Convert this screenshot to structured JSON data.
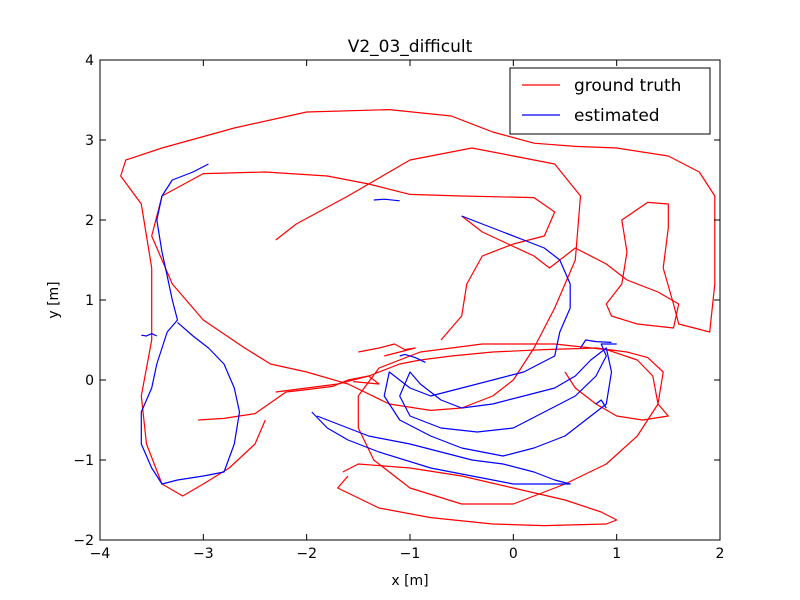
{
  "chart_data": {
    "type": "line",
    "title": "V2_03_difficult",
    "xlabel": "x [m]",
    "ylabel": "y [m]",
    "xlim": [
      -4,
      2
    ],
    "ylim": [
      -2,
      4
    ],
    "xticks": [
      -4,
      -3,
      -2,
      -1,
      0,
      1,
      2
    ],
    "yticks": [
      -2,
      -1,
      0,
      1,
      2,
      3,
      4
    ],
    "xtick_labels": [
      "−4",
      "−3",
      "−2",
      "−1",
      "0",
      "1",
      "2"
    ],
    "ytick_labels": [
      "−2",
      "−1",
      "0",
      "1",
      "2",
      "3",
      "4"
    ],
    "grid": false,
    "legend_position": "top-right",
    "colors": {
      "ground_truth": "#ff0000",
      "estimated": "#0000ff"
    },
    "series": [
      {
        "name": "ground truth",
        "color": "#ff0000",
        "segments": [
          [
            [
              -0.5,
              2.05
            ],
            [
              -0.3,
              1.85
            ],
            [
              -0.05,
              1.7
            ],
            [
              0.2,
              1.55
            ],
            [
              0.35,
              1.4
            ],
            [
              0.6,
              1.65
            ],
            [
              0.9,
              1.45
            ],
            [
              1.1,
              1.25
            ],
            [
              1.4,
              1.1
            ],
            [
              1.6,
              0.95
            ],
            [
              1.55,
              0.65
            ],
            [
              1.2,
              0.7
            ],
            [
              0.95,
              0.8
            ],
            [
              0.9,
              0.95
            ],
            [
              1.05,
              1.2
            ],
            [
              1.1,
              1.6
            ],
            [
              1.05,
              2.0
            ],
            [
              1.3,
              2.22
            ],
            [
              1.5,
              2.2
            ],
            [
              1.5,
              1.9
            ],
            [
              1.45,
              1.4
            ],
            [
              1.55,
              0.95
            ],
            [
              1.6,
              0.7
            ],
            [
              1.9,
              0.6
            ],
            [
              1.95,
              1.2
            ],
            [
              1.95,
              2.3
            ],
            [
              1.8,
              2.6
            ],
            [
              1.5,
              2.8
            ],
            [
              1.0,
              2.9
            ],
            [
              0.6,
              2.92
            ],
            [
              0.2,
              2.96
            ],
            [
              -0.2,
              3.1
            ],
            [
              -0.6,
              3.3
            ],
            [
              -1.2,
              3.38
            ],
            [
              -2.0,
              3.35
            ],
            [
              -2.7,
              3.15
            ],
            [
              -3.4,
              2.9
            ],
            [
              -3.75,
              2.75
            ],
            [
              -3.8,
              2.55
            ],
            [
              -3.6,
              2.2
            ],
            [
              -3.5,
              1.4
            ],
            [
              -3.5,
              0.5
            ],
            [
              -3.6,
              -0.2
            ],
            [
              -3.55,
              -0.8
            ],
            [
              -3.4,
              -1.3
            ],
            [
              -3.2,
              -1.45
            ],
            [
              -3.0,
              -1.3
            ],
            [
              -2.75,
              -1.1
            ],
            [
              -2.5,
              -0.8
            ],
            [
              -2.4,
              -0.5
            ]
          ],
          [
            [
              -2.3,
              -0.15
            ],
            [
              -2.0,
              -0.1
            ],
            [
              -1.7,
              -0.05
            ],
            [
              -1.4,
              0.05
            ],
            [
              -1.1,
              0.2
            ],
            [
              -0.9,
              0.25
            ],
            [
              -0.6,
              0.3
            ],
            [
              -0.2,
              0.35
            ],
            [
              0.3,
              0.38
            ],
            [
              0.8,
              0.4
            ],
            [
              1.1,
              0.35
            ],
            [
              1.3,
              0.28
            ],
            [
              1.45,
              0.1
            ],
            [
              1.4,
              -0.3
            ],
            [
              1.2,
              -0.7
            ],
            [
              0.9,
              -1.05
            ],
            [
              0.5,
              -1.3
            ],
            [
              0.0,
              -1.55
            ],
            [
              -0.5,
              -1.55
            ],
            [
              -1.0,
              -1.35
            ],
            [
              -1.35,
              -1.0
            ],
            [
              -1.5,
              -0.6
            ],
            [
              -1.5,
              -0.2
            ],
            [
              -1.3,
              0.15
            ],
            [
              -0.9,
              0.35
            ],
            [
              -0.3,
              0.45
            ],
            [
              0.4,
              0.45
            ],
            [
              0.9,
              0.38
            ],
            [
              1.2,
              0.25
            ],
            [
              1.35,
              0.05
            ],
            [
              1.4,
              -0.3
            ],
            [
              1.5,
              -0.45
            ],
            [
              1.25,
              -0.5
            ],
            [
              1.0,
              -0.45
            ],
            [
              0.8,
              -0.3
            ],
            [
              0.6,
              -0.1
            ],
            [
              0.5,
              0.1
            ]
          ],
          [
            [
              -2.3,
              1.75
            ],
            [
              -2.1,
              1.95
            ],
            [
              -1.6,
              2.3
            ],
            [
              -1.0,
              2.75
            ],
            [
              -0.4,
              2.9
            ],
            [
              0.0,
              2.8
            ],
            [
              0.4,
              2.7
            ],
            [
              0.65,
              2.3
            ],
            [
              0.6,
              1.5
            ],
            [
              0.4,
              0.9
            ],
            [
              0.2,
              0.4
            ],
            [
              0.0,
              0.0
            ],
            [
              -0.2,
              -0.2
            ],
            [
              -0.5,
              -0.35
            ],
            [
              -0.8,
              -0.38
            ],
            [
              -1.2,
              -0.3
            ],
            [
              -1.6,
              -0.05
            ],
            [
              -2.0,
              0.1
            ],
            [
              -2.35,
              0.2
            ],
            [
              -2.6,
              0.4
            ],
            [
              -3.0,
              0.75
            ],
            [
              -3.3,
              1.2
            ],
            [
              -3.5,
              1.8
            ],
            [
              -3.4,
              2.3
            ],
            [
              -3.0,
              2.58
            ],
            [
              -2.4,
              2.6
            ],
            [
              -1.8,
              2.55
            ],
            [
              -1.4,
              2.45
            ],
            [
              -1.0,
              2.32
            ],
            [
              -0.5,
              2.3
            ],
            [
              0.2,
              2.28
            ],
            [
              0.4,
              2.1
            ],
            [
              0.3,
              1.8
            ],
            [
              0.0,
              1.7
            ],
            [
              -0.3,
              1.55
            ],
            [
              -0.45,
              1.2
            ],
            [
              -0.5,
              0.8
            ],
            [
              -0.7,
              0.5
            ]
          ],
          [
            [
              -1.65,
              -1.15
            ],
            [
              -1.5,
              -1.05
            ],
            [
              -1.0,
              -1.1
            ],
            [
              -0.5,
              -1.2
            ],
            [
              0.0,
              -1.35
            ],
            [
              0.5,
              -1.5
            ],
            [
              0.85,
              -1.65
            ],
            [
              1.0,
              -1.75
            ],
            [
              0.9,
              -1.8
            ],
            [
              0.3,
              -1.82
            ],
            [
              -0.2,
              -1.8
            ],
            [
              -0.8,
              -1.72
            ],
            [
              -1.3,
              -1.6
            ],
            [
              -1.7,
              -1.35
            ],
            [
              -1.6,
              -1.2
            ]
          ],
          [
            [
              -3.05,
              -0.5
            ],
            [
              -2.8,
              -0.48
            ],
            [
              -2.5,
              -0.42
            ],
            [
              -2.2,
              -0.15
            ],
            [
              -2.0,
              -0.12
            ],
            [
              -1.75,
              -0.08
            ],
            [
              -1.6,
              0.0
            ],
            [
              -1.4,
              0.05
            ],
            [
              -1.3,
              -0.05
            ],
            [
              -1.55,
              -0.02
            ]
          ],
          [
            [
              -1.5,
              0.35
            ],
            [
              -1.3,
              0.4
            ],
            [
              -1.15,
              0.45
            ],
            [
              -1.05,
              0.38
            ],
            [
              -0.95,
              0.4
            ],
            [
              -1.25,
              0.3
            ]
          ]
        ]
      },
      {
        "name": "estimated",
        "color": "#0000ff",
        "segments": [
          [
            [
              -2.95,
              2.7
            ],
            [
              -3.1,
              2.6
            ],
            [
              -3.3,
              2.5
            ],
            [
              -3.4,
              2.3
            ],
            [
              -3.45,
              2.0
            ],
            [
              -3.4,
              1.6
            ],
            [
              -3.35,
              1.3
            ],
            [
              -3.3,
              1.0
            ],
            [
              -3.25,
              0.75
            ],
            [
              -3.35,
              0.6
            ],
            [
              -3.45,
              0.2
            ],
            [
              -3.5,
              -0.1
            ],
            [
              -3.6,
              -0.4
            ],
            [
              -3.6,
              -0.8
            ],
            [
              -3.5,
              -1.1
            ],
            [
              -3.4,
              -1.3
            ],
            [
              -3.25,
              -1.25
            ],
            [
              -3.0,
              -1.2
            ],
            [
              -2.8,
              -1.15
            ],
            [
              -2.7,
              -0.8
            ],
            [
              -2.65,
              -0.4
            ],
            [
              -2.7,
              -0.1
            ],
            [
              -2.8,
              0.2
            ],
            [
              -2.95,
              0.4
            ],
            [
              -3.1,
              0.55
            ],
            [
              -3.25,
              0.72
            ]
          ],
          [
            [
              -3.6,
              0.56
            ],
            [
              -3.55,
              0.55
            ],
            [
              -3.5,
              0.58
            ],
            [
              -3.45,
              0.55
            ]
          ],
          [
            [
              -1.35,
              2.25
            ],
            [
              -1.25,
              2.26
            ],
            [
              -1.1,
              2.24
            ]
          ],
          [
            [
              -0.5,
              2.05
            ],
            [
              -0.3,
              1.95
            ],
            [
              -0.1,
              1.85
            ],
            [
              0.1,
              1.75
            ],
            [
              0.3,
              1.65
            ],
            [
              0.45,
              1.5
            ],
            [
              0.55,
              1.2
            ],
            [
              0.55,
              0.9
            ],
            [
              0.45,
              0.6
            ],
            [
              0.4,
              0.3
            ],
            [
              0.1,
              0.1
            ],
            [
              -0.2,
              0.0
            ],
            [
              -0.5,
              -0.1
            ],
            [
              -0.8,
              -0.2
            ],
            [
              -1.0,
              -0.1
            ],
            [
              -1.2,
              0.1
            ],
            [
              -1.25,
              -0.2
            ],
            [
              -1.1,
              -0.5
            ],
            [
              -0.8,
              -0.7
            ],
            [
              -0.5,
              -0.85
            ],
            [
              -0.1,
              -0.95
            ],
            [
              0.2,
              -0.85
            ],
            [
              0.5,
              -0.7
            ],
            [
              0.7,
              -0.5
            ],
            [
              0.9,
              -0.3
            ],
            [
              0.95,
              0.1
            ],
            [
              0.9,
              0.4
            ],
            [
              0.75,
              0.25
            ],
            [
              0.6,
              0.05
            ],
            [
              0.4,
              -0.1
            ],
            [
              0.1,
              -0.2
            ],
            [
              -0.2,
              -0.3
            ],
            [
              -0.5,
              -0.35
            ],
            [
              -0.7,
              -0.25
            ],
            [
              -0.9,
              -0.05
            ],
            [
              -1.0,
              0.1
            ],
            [
              -1.1,
              -0.2
            ],
            [
              -1.0,
              -0.45
            ],
            [
              -0.7,
              -0.6
            ],
            [
              -0.35,
              -0.65
            ],
            [
              0.0,
              -0.6
            ],
            [
              0.3,
              -0.4
            ],
            [
              0.6,
              -0.2
            ],
            [
              0.8,
              0.05
            ],
            [
              0.9,
              0.3
            ],
            [
              0.85,
              0.45
            ],
            [
              1.0,
              0.45
            ]
          ],
          [
            [
              -1.9,
              -0.45
            ],
            [
              -1.8,
              -0.5
            ],
            [
              -1.6,
              -0.6
            ],
            [
              -1.4,
              -0.7
            ],
            [
              -1.2,
              -0.75
            ],
            [
              -1.0,
              -0.8
            ],
            [
              -0.7,
              -0.9
            ],
            [
              -0.4,
              -1.0
            ],
            [
              -0.1,
              -1.05
            ],
            [
              0.2,
              -1.15
            ],
            [
              0.4,
              -1.25
            ],
            [
              0.55,
              -1.3
            ],
            [
              0.3,
              -1.3
            ],
            [
              0.0,
              -1.3
            ],
            [
              -0.4,
              -1.2
            ],
            [
              -0.8,
              -1.1
            ],
            [
              -1.3,
              -0.9
            ],
            [
              -1.6,
              -0.75
            ],
            [
              -1.8,
              -0.6
            ],
            [
              -1.95,
              -0.4
            ]
          ],
          [
            [
              -1.1,
              0.3
            ],
            [
              -1.05,
              0.32
            ],
            [
              -0.95,
              0.28
            ],
            [
              -0.85,
              0.22
            ]
          ],
          [
            [
              0.65,
              0.4
            ],
            [
              0.7,
              0.5
            ],
            [
              0.8,
              0.48
            ],
            [
              0.95,
              0.47
            ]
          ],
          [
            [
              0.8,
              -0.3
            ],
            [
              0.85,
              -0.25
            ],
            [
              0.9,
              -0.35
            ]
          ]
        ]
      }
    ]
  }
}
